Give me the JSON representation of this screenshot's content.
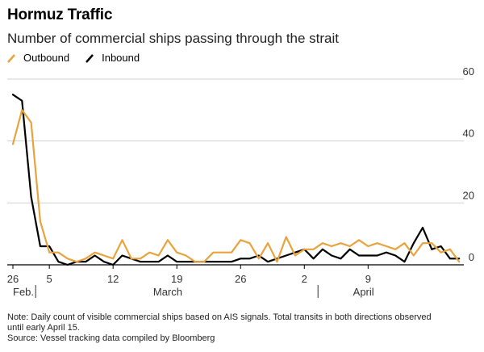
{
  "header": {
    "title": "Hormuz Traffic",
    "subtitle": "Number of commercial ships passing through the strait"
  },
  "colors": {
    "outbound": "#e8a33d",
    "inbound": "#000000",
    "grid": "#d0d0d0",
    "axis": "#000000"
  },
  "chart_data": {
    "type": "line",
    "title": "Hormuz Traffic",
    "subtitle": "Number of commercial ships passing through the strait",
    "xlabel": "",
    "ylabel": "",
    "ylim": [
      0,
      60
    ],
    "y_ticks": [
      "0",
      "20",
      "40",
      "60"
    ],
    "y_tick_values": [
      0,
      20,
      40,
      60
    ],
    "y_axis_side": "right",
    "grid": true,
    "legend_position": "top-left",
    "x_start_date": "Feb 26",
    "x_end_date": "Apr 15",
    "x_ticks": [
      {
        "day": 0,
        "label": "26"
      },
      {
        "day": 4,
        "label": "5"
      },
      {
        "day": 11,
        "label": "12"
      },
      {
        "day": 18,
        "label": "19"
      },
      {
        "day": 25,
        "label": "26"
      },
      {
        "day": 32,
        "label": "2"
      },
      {
        "day": 39,
        "label": "9"
      }
    ],
    "month_labels": [
      {
        "day": 0,
        "label": "Feb."
      },
      {
        "day": 17,
        "label": "March"
      },
      {
        "day": 38.5,
        "label": "April"
      }
    ],
    "month_separators": [
      2.5,
      33.5
    ],
    "series": [
      {
        "name": "Outbound",
        "color": "#e8a33d",
        "values": [
          39,
          50,
          46,
          14,
          4,
          4,
          2,
          1,
          2,
          4,
          3,
          2,
          8,
          2,
          2,
          4,
          3,
          8,
          4,
          3,
          1,
          1,
          4,
          4,
          4,
          8,
          7,
          2,
          7,
          1,
          9,
          3,
          5,
          5,
          7,
          6,
          7,
          6,
          8,
          6,
          7,
          6,
          5,
          7,
          3,
          7,
          7,
          4,
          5,
          1
        ]
      },
      {
        "name": "Inbound",
        "color": "#000000",
        "values": [
          55,
          53,
          22,
          6,
          6,
          1,
          0,
          1,
          1,
          3,
          1,
          0,
          3,
          2,
          1,
          1,
          1,
          3,
          1,
          1,
          1,
          1,
          1,
          1,
          1,
          2,
          2,
          3,
          1,
          2,
          3,
          4,
          5,
          2,
          5,
          3,
          2,
          5,
          3,
          3,
          3,
          4,
          3,
          1,
          7,
          12,
          5,
          6,
          2,
          2
        ]
      }
    ]
  },
  "notes": {
    "line1": "Note: Daily count of visible commercial ships based on AIS signals. Total transits in both directions observed",
    "line2": "until early April 15.",
    "source": "Source: Vessel tracking data compiled by Bloomberg"
  }
}
